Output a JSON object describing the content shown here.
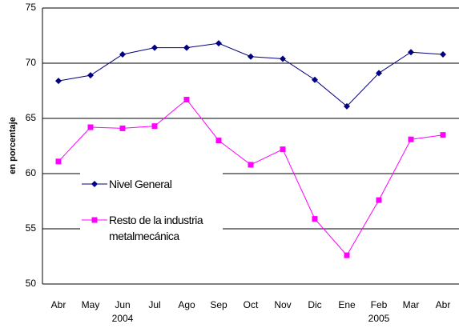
{
  "chart_data": {
    "type": "line",
    "y_label": "en porcentaje",
    "categories": [
      "Abr",
      "May",
      "Jun",
      "Jul",
      "Ago",
      "Sep",
      "Oct",
      "Nov",
      "Dic",
      "Ene",
      "Feb",
      "Mar",
      "Abr"
    ],
    "year_labels": [
      "2004",
      "2005"
    ],
    "series": [
      {
        "name": "Nivel General",
        "color": "#000080",
        "marker": "diamond",
        "values": [
          68.4,
          68.9,
          70.8,
          71.4,
          71.4,
          71.8,
          70.6,
          70.4,
          68.5,
          66.1,
          69.1,
          71.0,
          70.8
        ]
      },
      {
        "name": "Resto de la industria metalmecánica",
        "color": "#ff00ff",
        "marker": "square",
        "values": [
          61.1,
          64.2,
          64.1,
          64.3,
          66.7,
          63.0,
          60.8,
          62.2,
          55.9,
          52.6,
          57.6,
          63.1,
          63.5
        ]
      }
    ],
    "ylim": [
      50,
      75
    ],
    "yticks": [
      50,
      55,
      60,
      65,
      70,
      75
    ],
    "grid": true
  }
}
